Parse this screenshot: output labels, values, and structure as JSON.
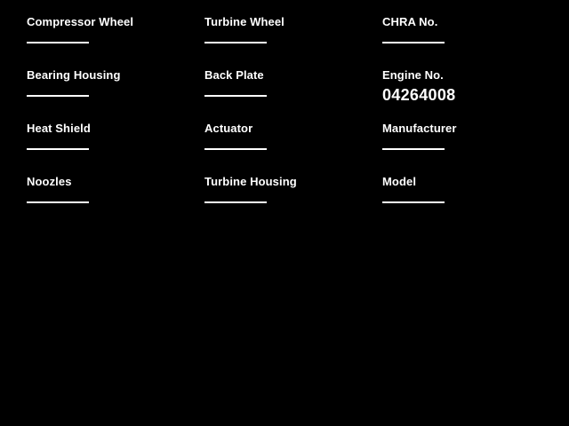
{
  "colors": {
    "background": "#000000",
    "text": "#ffffff",
    "underline": "#ffffff"
  },
  "form": {
    "fields": [
      {
        "label": "Compressor Wheel",
        "value": ""
      },
      {
        "label": "Turbine Wheel",
        "value": ""
      },
      {
        "label": "CHRA No.",
        "value": ""
      },
      {
        "label": "Bearing Housing",
        "value": ""
      },
      {
        "label": "Back Plate",
        "value": ""
      },
      {
        "label": "Engine No.",
        "value": "04264008"
      },
      {
        "label": "Heat Shield",
        "value": ""
      },
      {
        "label": "Actuator",
        "value": ""
      },
      {
        "label": "Manufacturer",
        "value": ""
      },
      {
        "label": "Noozles",
        "value": ""
      },
      {
        "label": "Turbine Housing",
        "value": ""
      },
      {
        "label": "Model",
        "value": ""
      }
    ]
  }
}
